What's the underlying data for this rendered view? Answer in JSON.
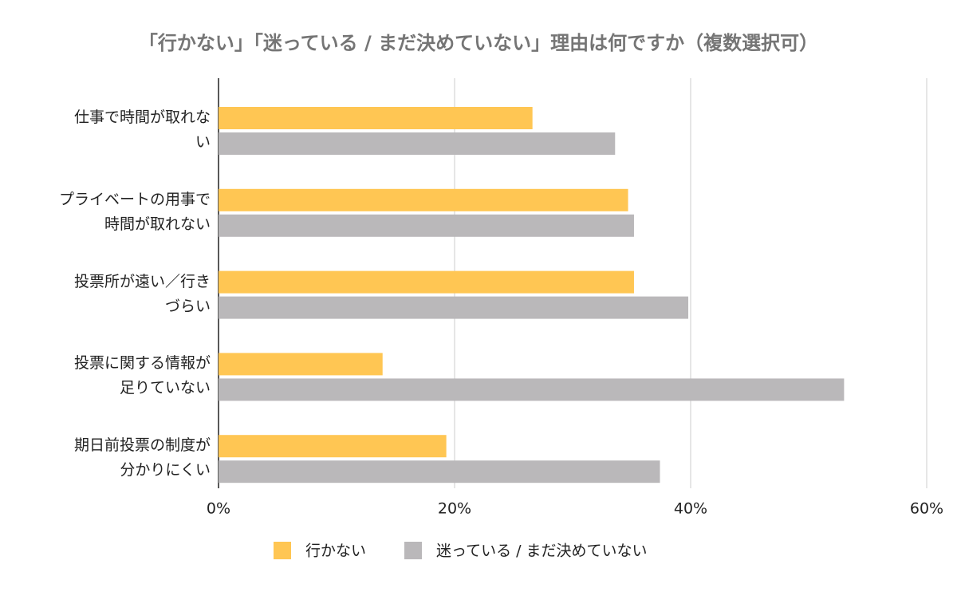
{
  "chart_data": {
    "type": "hbar",
    "title": "「行かない」「迷っている / まだ決めていない」理由は何ですか（複数選択可）",
    "categories": [
      "仕事で時間が取れな\nい",
      "プライベートの用事で\n時間が取れない",
      "投票所が遠い／行き\nづらい",
      "投票に関する情報が\n足りていない",
      "期日前投票の制度が\n分かりにくい"
    ],
    "series": [
      {
        "name": "行かない",
        "color": "#ffc653",
        "values": [
          26.6,
          34.7,
          35.2,
          13.9,
          19.3
        ]
      },
      {
        "name": "迷っている / まだ決めていない",
        "color": "#bab8ba",
        "values": [
          33.6,
          35.2,
          39.8,
          53.0,
          37.4
        ]
      }
    ],
    "xlim": [
      0,
      60
    ],
    "xticks": [
      {
        "value": 0,
        "label": "0%"
      },
      {
        "value": 20,
        "label": "20%"
      },
      {
        "value": 40,
        "label": "40%"
      },
      {
        "value": 60,
        "label": "60%"
      }
    ],
    "grid": true,
    "legend": "bottom"
  }
}
